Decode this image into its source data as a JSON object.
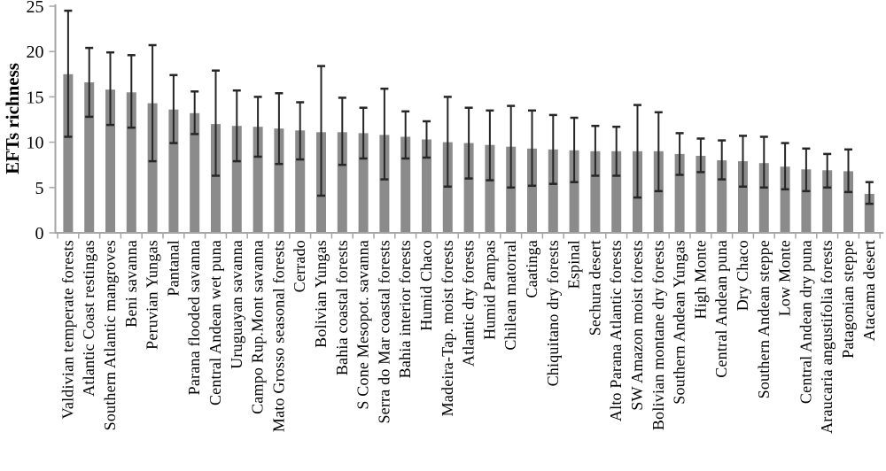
{
  "figure": {
    "background_color": "#ffffff",
    "axis_color": "#a6a6a6",
    "bar_color": "#8b8b8b",
    "error_bar_color": "#262626",
    "text_color": "#000000"
  },
  "chart_data": {
    "type": "bar",
    "title": "",
    "xlabel": "",
    "ylabel": "EFTs richness",
    "ylim": [
      0,
      25
    ],
    "yticks": [
      0,
      5,
      10,
      15,
      20,
      25
    ],
    "grid": false,
    "legend": null,
    "error_bars": "vertical whiskers with caps, absolute low/high values per bar",
    "categories": [
      "Valdivian temperate forests",
      "Atlantic Coast restingas",
      "Southern Atlantic mangroves",
      "Beni savanna",
      "Peruvian Yungas",
      "Pantanal",
      "Parana flooded savanna",
      "Central Andean wet puna",
      "Uruguayan savanna",
      "Campo Rup.Mont savanna",
      "Mato Grosso seasonal forests",
      "Cerrado",
      "Bolivian Yungas",
      "Bahia coastal forests",
      "S Cone Mesopot. savanna",
      "Serra do Mar coastal forests",
      "Bahia interior forests",
      "Humid Chaco",
      "Madeira-Tap. moist forests",
      "Atlantic dry forests",
      "Humid Pampas",
      "Chilean matorral",
      "Caatinga",
      "Chiquitano dry forests",
      "Espinal",
      "Sechura desert",
      "Alto Parana Atlantic forests",
      "SW Amazon moist forests",
      "Bolivian montane dry forests",
      "Southern Andean Yungas",
      "High Monte",
      "Central Andean puna",
      "Dry Chaco",
      "Southern Andean steppe",
      "Low Monte",
      "Central Andean dry puna",
      "Araucaria angustifolia forests",
      "Patagonian steppe",
      "Atacama desert"
    ],
    "values": [
      17.5,
      16.6,
      15.8,
      15.5,
      14.3,
      13.6,
      13.2,
      12.0,
      11.8,
      11.7,
      11.5,
      11.3,
      11.1,
      11.1,
      11.0,
      10.8,
      10.6,
      10.3,
      10.0,
      9.9,
      9.7,
      9.5,
      9.3,
      9.2,
      9.1,
      9.0,
      9.0,
      9.0,
      9.0,
      8.7,
      8.5,
      8.0,
      7.9,
      7.7,
      7.3,
      7.0,
      6.9,
      6.8,
      4.3
    ],
    "error_low": [
      10.6,
      12.8,
      11.9,
      11.6,
      7.9,
      9.9,
      10.9,
      6.3,
      7.9,
      8.4,
      7.6,
      8.1,
      4.1,
      7.5,
      8.2,
      5.9,
      8.2,
      8.3,
      5.1,
      6.0,
      5.8,
      5.0,
      5.2,
      5.4,
      5.6,
      6.3,
      6.3,
      3.9,
      4.6,
      6.4,
      6.7,
      5.9,
      5.1,
      5.0,
      4.8,
      4.6,
      5.0,
      4.5,
      3.2
    ],
    "error_high": [
      24.5,
      20.4,
      19.9,
      19.6,
      20.7,
      17.4,
      15.6,
      17.9,
      15.7,
      15.0,
      15.4,
      14.4,
      18.4,
      14.9,
      13.8,
      15.9,
      13.4,
      12.3,
      15.0,
      13.8,
      13.5,
      14.0,
      13.5,
      13.0,
      12.7,
      11.8,
      11.7,
      14.1,
      13.3,
      11.0,
      10.4,
      10.2,
      10.7,
      10.6,
      9.9,
      9.3,
      8.7,
      9.2,
      5.6
    ]
  }
}
